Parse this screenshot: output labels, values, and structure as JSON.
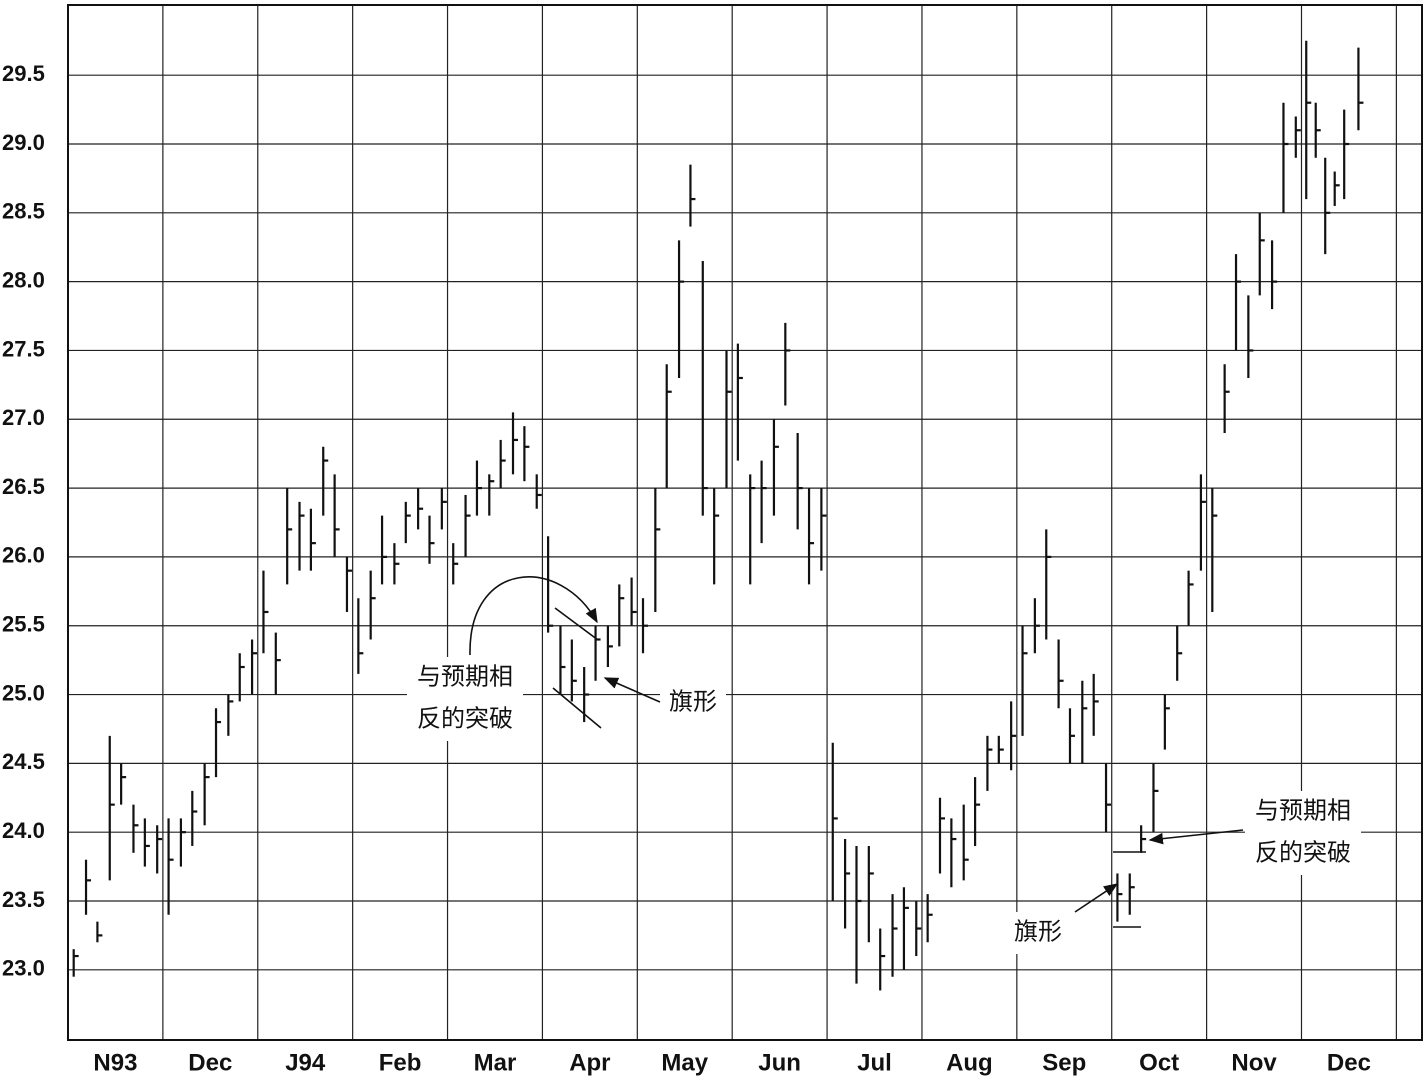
{
  "chart_data": {
    "type": "ohlc",
    "months": [
      "N93",
      "Dec",
      "J94",
      "Feb",
      "Mar",
      "Apr",
      "May",
      "Jun",
      "Jul",
      "Aug",
      "Sep",
      "Oct",
      "Nov",
      "Dec"
    ],
    "xlim": [
      0,
      14.27
    ],
    "xticks": [
      0,
      1,
      2,
      3,
      4,
      5,
      6,
      7,
      8,
      9,
      10,
      11,
      12,
      13,
      14
    ],
    "ylim": [
      22.49,
      30.01
    ],
    "yticks": [
      {
        "value": 23,
        "label": "23.0"
      },
      {
        "value": 23.5,
        "label": "23.5"
      },
      {
        "value": 24,
        "label": "24.0"
      },
      {
        "value": 24.5,
        "label": "24.5"
      },
      {
        "value": 25,
        "label": "25.0"
      },
      {
        "value": 25.5,
        "label": "25.5"
      },
      {
        "value": 26,
        "label": "26.0"
      },
      {
        "value": 26.5,
        "label": "26.5"
      },
      {
        "value": 27,
        "label": "27.0"
      },
      {
        "value": 27.5,
        "label": "27.5"
      },
      {
        "value": 28,
        "label": "28.0"
      },
      {
        "value": 28.5,
        "label": "28.5"
      },
      {
        "value": 29,
        "label": "29.0"
      },
      {
        "value": 29.5,
        "label": "29.5"
      }
    ],
    "grid": true,
    "color": "#111111",
    "bars": [
      {
        "x": 0.06,
        "high": 23.15,
        "low": 22.95,
        "close": 23.1
      },
      {
        "x": 0.19,
        "high": 23.8,
        "low": 23.4,
        "close": 23.65
      },
      {
        "x": 0.31,
        "high": 23.35,
        "low": 23.2,
        "close": 23.25
      },
      {
        "x": 0.44,
        "high": 24.7,
        "low": 23.65,
        "close": 24.2
      },
      {
        "x": 0.56,
        "high": 24.5,
        "low": 24.2,
        "close": 24.4
      },
      {
        "x": 0.69,
        "high": 24.2,
        "low": 23.85,
        "close": 24.05
      },
      {
        "x": 0.81,
        "high": 24.1,
        "low": 23.75,
        "close": 23.9
      },
      {
        "x": 0.94,
        "high": 24.05,
        "low": 23.7,
        "close": 23.95
      },
      {
        "x": 1.06,
        "high": 24.1,
        "low": 23.4,
        "close": 23.8
      },
      {
        "x": 1.19,
        "high": 24.1,
        "low": 23.75,
        "close": 24.0
      },
      {
        "x": 1.31,
        "high": 24.3,
        "low": 23.9,
        "close": 24.15
      },
      {
        "x": 1.44,
        "high": 24.5,
        "low": 24.05,
        "close": 24.4
      },
      {
        "x": 1.56,
        "high": 24.9,
        "low": 24.4,
        "close": 24.8
      },
      {
        "x": 1.69,
        "high": 25.0,
        "low": 24.7,
        "close": 24.95
      },
      {
        "x": 1.81,
        "high": 25.3,
        "low": 24.95,
        "close": 25.2
      },
      {
        "x": 1.94,
        "high": 25.4,
        "low": 25.0,
        "close": 25.3
      },
      {
        "x": 2.06,
        "high": 25.9,
        "low": 25.3,
        "close": 25.6
      },
      {
        "x": 2.19,
        "high": 25.45,
        "low": 25.0,
        "close": 25.25
      },
      {
        "x": 2.31,
        "high": 26.5,
        "low": 25.8,
        "close": 26.2
      },
      {
        "x": 2.44,
        "high": 26.4,
        "low": 25.9,
        "close": 26.3
      },
      {
        "x": 2.56,
        "high": 26.35,
        "low": 25.9,
        "close": 26.1
      },
      {
        "x": 2.69,
        "high": 26.8,
        "low": 26.3,
        "close": 26.7
      },
      {
        "x": 2.81,
        "high": 26.6,
        "low": 26.0,
        "close": 26.2
      },
      {
        "x": 2.94,
        "high": 26.0,
        "low": 25.6,
        "close": 25.9
      },
      {
        "x": 3.06,
        "high": 25.7,
        "low": 25.15,
        "close": 25.3
      },
      {
        "x": 3.19,
        "high": 25.9,
        "low": 25.4,
        "close": 25.7
      },
      {
        "x": 3.31,
        "high": 26.3,
        "low": 25.8,
        "close": 26.0
      },
      {
        "x": 3.44,
        "high": 26.1,
        "low": 25.8,
        "close": 25.95
      },
      {
        "x": 3.56,
        "high": 26.4,
        "low": 26.1,
        "close": 26.3
      },
      {
        "x": 3.69,
        "high": 26.5,
        "low": 26.2,
        "close": 26.35
      },
      {
        "x": 3.81,
        "high": 26.3,
        "low": 25.95,
        "close": 26.1
      },
      {
        "x": 3.94,
        "high": 26.5,
        "low": 26.2,
        "close": 26.4
      },
      {
        "x": 4.06,
        "high": 26.1,
        "low": 25.8,
        "close": 25.95
      },
      {
        "x": 4.19,
        "high": 26.45,
        "low": 26.0,
        "close": 26.3
      },
      {
        "x": 4.31,
        "high": 26.7,
        "low": 26.3,
        "close": 26.5
      },
      {
        "x": 4.44,
        "high": 26.6,
        "low": 26.3,
        "close": 26.55
      },
      {
        "x": 4.56,
        "high": 26.85,
        "low": 26.5,
        "close": 26.7
      },
      {
        "x": 4.69,
        "high": 27.05,
        "low": 26.6,
        "close": 26.85
      },
      {
        "x": 4.81,
        "high": 26.95,
        "low": 26.55,
        "close": 26.8
      },
      {
        "x": 4.94,
        "high": 26.6,
        "low": 26.35,
        "close": 26.45
      },
      {
        "x": 5.06,
        "high": 26.15,
        "low": 25.45,
        "close": 25.5
      },
      {
        "x": 5.19,
        "high": 25.5,
        "low": 25.0,
        "close": 25.2
      },
      {
        "x": 5.31,
        "high": 25.4,
        "low": 24.95,
        "close": 25.1
      },
      {
        "x": 5.44,
        "high": 25.2,
        "low": 24.8,
        "close": 25.0
      },
      {
        "x": 5.56,
        "high": 25.5,
        "low": 25.1,
        "close": 25.4
      },
      {
        "x": 5.69,
        "high": 25.5,
        "low": 25.2,
        "close": 25.35
      },
      {
        "x": 5.81,
        "high": 25.8,
        "low": 25.35,
        "close": 25.7
      },
      {
        "x": 5.94,
        "high": 25.85,
        "low": 25.5,
        "close": 25.6
      },
      {
        "x": 6.06,
        "high": 25.7,
        "low": 25.3,
        "close": 25.5
      },
      {
        "x": 6.19,
        "high": 26.5,
        "low": 25.6,
        "close": 26.2
      },
      {
        "x": 6.31,
        "high": 27.4,
        "low": 26.5,
        "close": 27.2
      },
      {
        "x": 6.44,
        "high": 28.3,
        "low": 27.3,
        "close": 28.0
      },
      {
        "x": 6.56,
        "high": 28.85,
        "low": 28.4,
        "close": 28.6
      },
      {
        "x": 6.69,
        "high": 28.15,
        "low": 26.3,
        "close": 26.5
      },
      {
        "x": 6.81,
        "high": 26.5,
        "low": 25.8,
        "close": 26.3
      },
      {
        "x": 6.94,
        "high": 27.5,
        "low": 26.5,
        "close": 27.2
      },
      {
        "x": 7.06,
        "high": 27.55,
        "low": 26.7,
        "close": 27.3
      },
      {
        "x": 7.19,
        "high": 26.6,
        "low": 25.8,
        "close": 26.5
      },
      {
        "x": 7.31,
        "high": 26.7,
        "low": 26.1,
        "close": 26.5
      },
      {
        "x": 7.44,
        "high": 27.0,
        "low": 26.3,
        "close": 26.8
      },
      {
        "x": 7.56,
        "high": 27.7,
        "low": 27.1,
        "close": 27.5
      },
      {
        "x": 7.69,
        "high": 26.9,
        "low": 26.2,
        "close": 26.5
      },
      {
        "x": 7.81,
        "high": 26.5,
        "low": 25.8,
        "close": 26.1
      },
      {
        "x": 7.94,
        "high": 26.5,
        "low": 25.9,
        "close": 26.3
      },
      {
        "x": 8.06,
        "high": 24.65,
        "low": 23.5,
        "close": 24.1
      },
      {
        "x": 8.19,
        "high": 23.95,
        "low": 23.3,
        "close": 23.7
      },
      {
        "x": 8.31,
        "high": 23.9,
        "low": 22.9,
        "close": 23.5
      },
      {
        "x": 8.44,
        "high": 23.9,
        "low": 23.2,
        "close": 23.7
      },
      {
        "x": 8.56,
        "high": 23.3,
        "low": 22.85,
        "close": 23.1
      },
      {
        "x": 8.69,
        "high": 23.55,
        "low": 22.95,
        "close": 23.3
      },
      {
        "x": 8.81,
        "high": 23.6,
        "low": 23.0,
        "close": 23.45
      },
      {
        "x": 8.94,
        "high": 23.5,
        "low": 23.1,
        "close": 23.3
      },
      {
        "x": 9.06,
        "high": 23.55,
        "low": 23.2,
        "close": 23.4
      },
      {
        "x": 9.19,
        "high": 24.25,
        "low": 23.7,
        "close": 24.1
      },
      {
        "x": 9.31,
        "high": 24.1,
        "low": 23.6,
        "close": 23.95
      },
      {
        "x": 9.44,
        "high": 24.2,
        "low": 23.65,
        "close": 23.8
      },
      {
        "x": 9.56,
        "high": 24.4,
        "low": 23.9,
        "close": 24.2
      },
      {
        "x": 9.69,
        "high": 24.7,
        "low": 24.3,
        "close": 24.6
      },
      {
        "x": 9.81,
        "high": 24.7,
        "low": 24.5,
        "close": 24.6
      },
      {
        "x": 9.94,
        "high": 24.95,
        "low": 24.45,
        "close": 24.7
      },
      {
        "x": 10.06,
        "high": 25.5,
        "low": 24.7,
        "close": 25.3
      },
      {
        "x": 10.19,
        "high": 25.7,
        "low": 25.3,
        "close": 25.5
      },
      {
        "x": 10.31,
        "high": 26.2,
        "low": 25.4,
        "close": 26.0
      },
      {
        "x": 10.44,
        "high": 25.4,
        "low": 24.9,
        "close": 25.1
      },
      {
        "x": 10.56,
        "high": 24.9,
        "low": 24.5,
        "close": 24.7
      },
      {
        "x": 10.69,
        "high": 25.1,
        "low": 24.5,
        "close": 24.9
      },
      {
        "x": 10.81,
        "high": 25.15,
        "low": 24.7,
        "close": 24.95
      },
      {
        "x": 10.94,
        "high": 24.5,
        "low": 24.0,
        "close": 24.2
      },
      {
        "x": 11.06,
        "high": 23.7,
        "low": 23.35,
        "close": 23.55
      },
      {
        "x": 11.19,
        "high": 23.7,
        "low": 23.4,
        "close": 23.6
      },
      {
        "x": 11.31,
        "high": 24.05,
        "low": 23.85,
        "close": 23.95
      },
      {
        "x": 11.44,
        "high": 24.5,
        "low": 24.0,
        "close": 24.3
      },
      {
        "x": 11.56,
        "high": 25.0,
        "low": 24.6,
        "close": 24.9
      },
      {
        "x": 11.69,
        "high": 25.5,
        "low": 25.1,
        "close": 25.3
      },
      {
        "x": 11.81,
        "high": 25.9,
        "low": 25.5,
        "close": 25.8
      },
      {
        "x": 11.94,
        "high": 26.6,
        "low": 25.9,
        "close": 26.4
      },
      {
        "x": 12.06,
        "high": 26.5,
        "low": 25.6,
        "close": 26.3
      },
      {
        "x": 12.19,
        "high": 27.4,
        "low": 26.9,
        "close": 27.2
      },
      {
        "x": 12.31,
        "high": 28.2,
        "low": 27.5,
        "close": 28.0
      },
      {
        "x": 12.44,
        "high": 27.9,
        "low": 27.3,
        "close": 27.5
      },
      {
        "x": 12.56,
        "high": 28.5,
        "low": 27.9,
        "close": 28.3
      },
      {
        "x": 12.69,
        "high": 28.3,
        "low": 27.8,
        "close": 28.0
      },
      {
        "x": 12.81,
        "high": 29.3,
        "low": 28.5,
        "close": 29.0
      },
      {
        "x": 12.94,
        "high": 29.2,
        "low": 28.9,
        "close": 29.1
      },
      {
        "x": 13.05,
        "high": 29.75,
        "low": 28.6,
        "close": 29.3
      },
      {
        "x": 13.15,
        "high": 29.3,
        "low": 28.9,
        "close": 29.1
      },
      {
        "x": 13.25,
        "high": 28.9,
        "low": 28.2,
        "close": 28.5
      },
      {
        "x": 13.35,
        "high": 28.8,
        "low": 28.55,
        "close": 28.7
      },
      {
        "x": 13.45,
        "high": 29.25,
        "low": 28.6,
        "close": 29.0
      },
      {
        "x": 13.6,
        "high": 29.7,
        "low": 29.1,
        "close": 29.3
      }
    ],
    "annotations": [
      {
        "lines": [
          "与预期相",
          "反的突破"
        ]
      },
      {
        "lines": [
          "旗形"
        ]
      },
      {
        "lines": [
          "与预期相",
          "反的突破"
        ]
      },
      {
        "lines": [
          "旗形"
        ]
      }
    ]
  }
}
